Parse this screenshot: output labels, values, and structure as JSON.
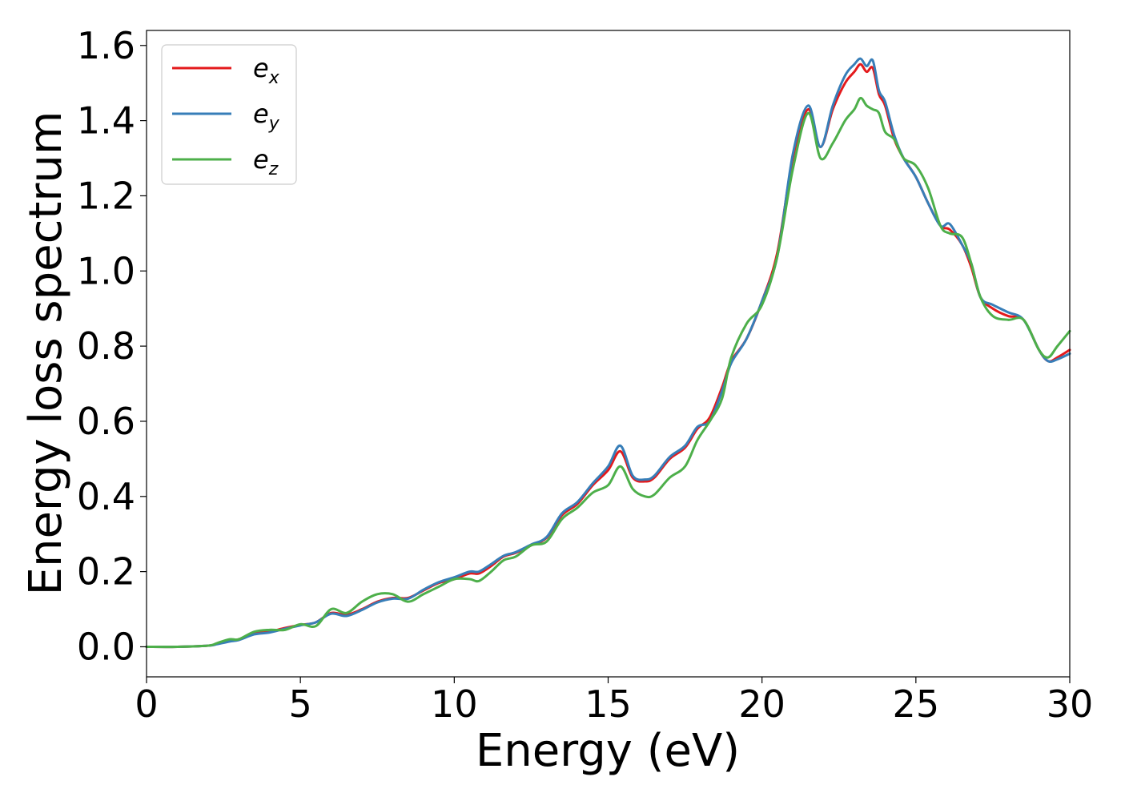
{
  "chart_data": {
    "type": "line",
    "title": "",
    "xlabel": "Energy (eV)",
    "ylabel": "Energy loss spectrum",
    "xlim": [
      0,
      30
    ],
    "ylim": [
      -0.08,
      1.64
    ],
    "xticks": [
      0,
      5,
      10,
      15,
      20,
      25,
      30
    ],
    "xtick_labels": [
      "0",
      "5",
      "10",
      "15",
      "20",
      "25",
      "30"
    ],
    "yticks": [
      0.0,
      0.2,
      0.4,
      0.6,
      0.8,
      1.0,
      1.2,
      1.4,
      1.6
    ],
    "ytick_labels": [
      "0.0",
      "0.2",
      "0.4",
      "0.6",
      "0.8",
      "1.0",
      "1.2",
      "1.4",
      "1.6"
    ],
    "grid": false,
    "legend_position": "top-left",
    "series": [
      {
        "name": "e",
        "subscript": "x",
        "color": "#e41a1c",
        "x": [
          0,
          1,
          2,
          2.3,
          2.7,
          3.0,
          3.5,
          4.0,
          4.5,
          5.0,
          5.5,
          6.0,
          6.5,
          7.0,
          7.5,
          8.0,
          8.5,
          9.0,
          9.5,
          10.0,
          10.5,
          10.8,
          11.2,
          11.6,
          12.0,
          12.5,
          13.0,
          13.5,
          14.0,
          14.5,
          15.0,
          15.4,
          15.8,
          16.2,
          16.5,
          17.0,
          17.5,
          17.9,
          18.3,
          18.7,
          19.0,
          19.5,
          20.0,
          20.5,
          21.0,
          21.5,
          21.9,
          22.3,
          22.7,
          23.0,
          23.2,
          23.4,
          23.6,
          23.8,
          24.0,
          24.3,
          24.6,
          25.0,
          25.4,
          25.8,
          26.1,
          26.5,
          26.8,
          27.1,
          27.5,
          28.0,
          28.5,
          29.0,
          29.3,
          29.6,
          30.0
        ],
        "y": [
          0.0,
          0.0,
          0.003,
          0.008,
          0.015,
          0.02,
          0.035,
          0.04,
          0.05,
          0.058,
          0.065,
          0.09,
          0.085,
          0.1,
          0.12,
          0.13,
          0.13,
          0.15,
          0.17,
          0.18,
          0.195,
          0.195,
          0.215,
          0.24,
          0.25,
          0.27,
          0.29,
          0.35,
          0.38,
          0.43,
          0.47,
          0.52,
          0.45,
          0.44,
          0.45,
          0.5,
          0.53,
          0.58,
          0.61,
          0.69,
          0.76,
          0.82,
          0.92,
          1.05,
          1.3,
          1.43,
          1.33,
          1.43,
          1.5,
          1.53,
          1.55,
          1.53,
          1.54,
          1.47,
          1.44,
          1.35,
          1.3,
          1.25,
          1.18,
          1.12,
          1.11,
          1.07,
          1.01,
          0.93,
          0.9,
          0.88,
          0.87,
          0.79,
          0.76,
          0.77,
          0.79
        ]
      },
      {
        "name": "e",
        "subscript": "y",
        "color": "#377eb8",
        "x": [
          0,
          1,
          2,
          2.3,
          2.7,
          3.0,
          3.5,
          4.0,
          4.5,
          5.0,
          5.5,
          6.0,
          6.5,
          7.0,
          7.5,
          8.0,
          8.5,
          9.0,
          9.5,
          10.0,
          10.5,
          10.8,
          11.2,
          11.6,
          12.0,
          12.5,
          13.0,
          13.5,
          14.0,
          14.5,
          15.0,
          15.4,
          15.8,
          16.2,
          16.5,
          17.0,
          17.5,
          17.9,
          18.3,
          18.7,
          19.0,
          19.5,
          20.0,
          20.5,
          21.0,
          21.5,
          21.9,
          22.3,
          22.7,
          23.0,
          23.2,
          23.4,
          23.6,
          23.8,
          24.0,
          24.3,
          24.6,
          25.0,
          25.4,
          25.8,
          26.1,
          26.5,
          26.8,
          27.1,
          27.5,
          28.0,
          28.5,
          29.0,
          29.3,
          29.6,
          30.0
        ],
        "y": [
          0.0,
          0.0,
          0.003,
          0.007,
          0.014,
          0.018,
          0.033,
          0.038,
          0.048,
          0.057,
          0.065,
          0.088,
          0.082,
          0.098,
          0.118,
          0.128,
          0.128,
          0.152,
          0.172,
          0.185,
          0.2,
          0.2,
          0.22,
          0.242,
          0.252,
          0.272,
          0.292,
          0.355,
          0.385,
          0.435,
          0.48,
          0.535,
          0.455,
          0.445,
          0.455,
          0.505,
          0.535,
          0.585,
          0.6,
          0.68,
          0.755,
          0.82,
          0.92,
          1.04,
          1.31,
          1.44,
          1.33,
          1.44,
          1.52,
          1.55,
          1.565,
          1.545,
          1.56,
          1.48,
          1.45,
          1.36,
          1.3,
          1.25,
          1.18,
          1.12,
          1.125,
          1.07,
          1.02,
          0.93,
          0.91,
          0.89,
          0.87,
          0.79,
          0.76,
          0.765,
          0.78
        ]
      },
      {
        "name": "e",
        "subscript": "z",
        "color": "#4daf4a",
        "x": [
          0,
          1,
          2,
          2.3,
          2.7,
          3.0,
          3.5,
          4.0,
          4.5,
          5.0,
          5.5,
          6.0,
          6.5,
          7.0,
          7.5,
          8.0,
          8.5,
          9.0,
          9.5,
          10.0,
          10.5,
          10.8,
          11.2,
          11.6,
          12.0,
          12.5,
          13.0,
          13.5,
          14.0,
          14.5,
          15.0,
          15.4,
          15.8,
          16.2,
          16.5,
          17.0,
          17.5,
          17.9,
          18.3,
          18.7,
          19.0,
          19.5,
          20.0,
          20.5,
          21.0,
          21.5,
          21.9,
          22.3,
          22.7,
          23.0,
          23.2,
          23.4,
          23.6,
          23.8,
          24.0,
          24.3,
          24.6,
          25.0,
          25.4,
          25.8,
          26.1,
          26.5,
          26.8,
          27.1,
          27.5,
          28.0,
          28.5,
          29.0,
          29.3,
          29.6,
          30.0
        ],
        "y": [
          0.0,
          0.0,
          0.003,
          0.01,
          0.02,
          0.02,
          0.04,
          0.045,
          0.045,
          0.06,
          0.055,
          0.1,
          0.09,
          0.12,
          0.14,
          0.14,
          0.12,
          0.14,
          0.16,
          0.18,
          0.18,
          0.175,
          0.2,
          0.23,
          0.24,
          0.27,
          0.28,
          0.34,
          0.37,
          0.41,
          0.43,
          0.48,
          0.42,
          0.4,
          0.405,
          0.45,
          0.48,
          0.55,
          0.6,
          0.66,
          0.77,
          0.86,
          0.91,
          1.04,
          1.27,
          1.42,
          1.3,
          1.34,
          1.4,
          1.43,
          1.46,
          1.44,
          1.43,
          1.42,
          1.37,
          1.35,
          1.3,
          1.28,
          1.22,
          1.12,
          1.1,
          1.09,
          1.02,
          0.93,
          0.88,
          0.87,
          0.87,
          0.79,
          0.77,
          0.8,
          0.84
        ]
      }
    ]
  }
}
